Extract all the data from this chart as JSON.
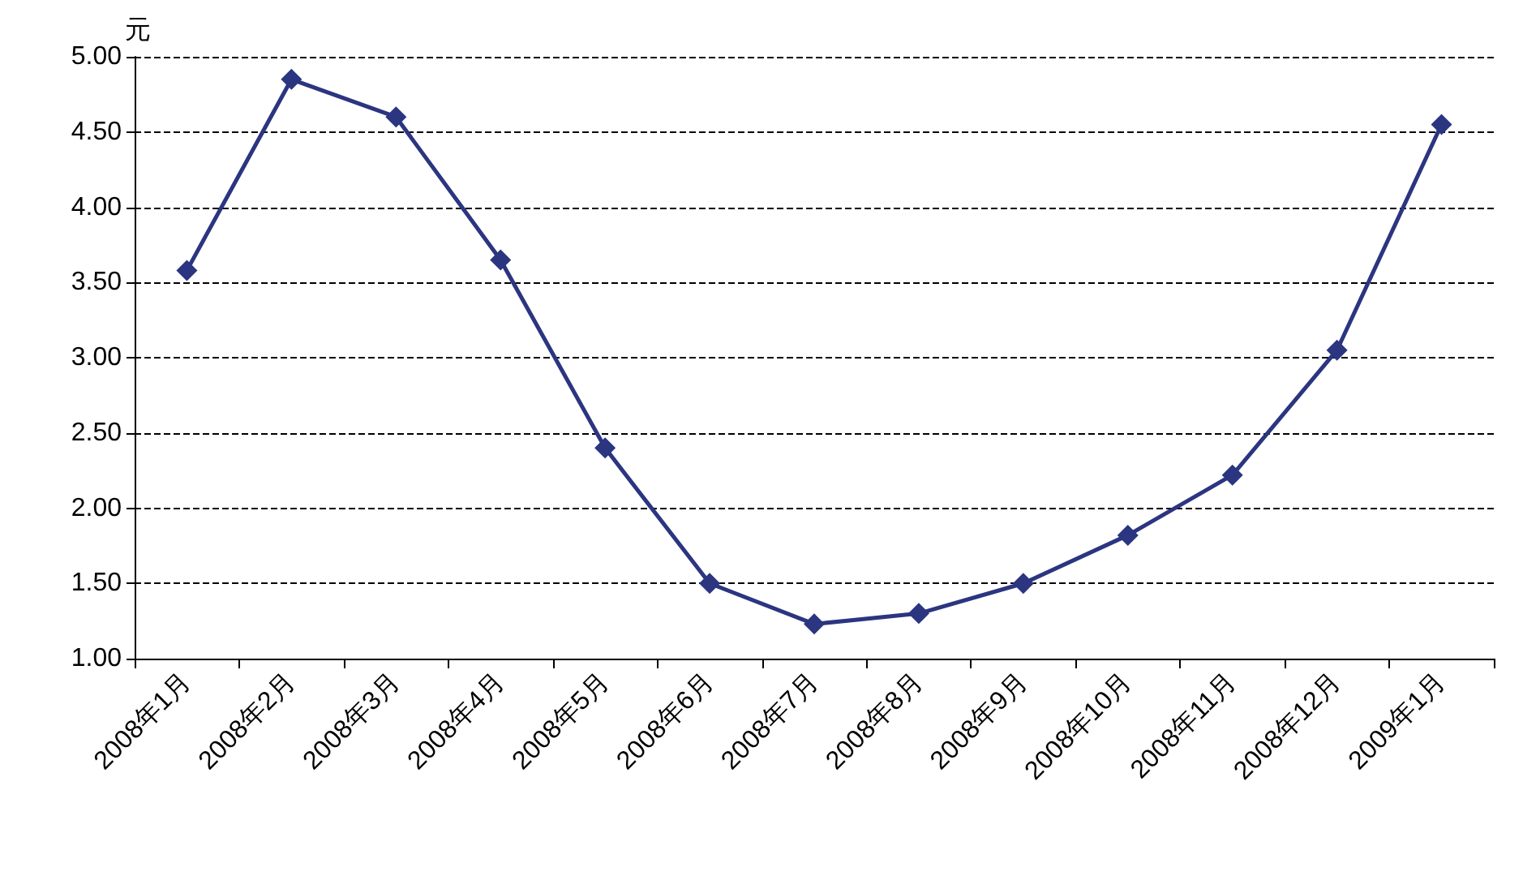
{
  "chart_data": {
    "type": "line",
    "ylabel": "元",
    "categories": [
      "2008年1月",
      "2008年2月",
      "2008年3月",
      "2008年4月",
      "2008年5月",
      "2008年6月",
      "2008年7月",
      "2008年8月",
      "2008年9月",
      "2008年10月",
      "2008年11月",
      "2008年12月",
      "2009年1月"
    ],
    "series": [
      {
        "color": "#2b3580",
        "values": [
          3.58,
          4.85,
          4.6,
          3.65,
          2.4,
          1.5,
          1.23,
          1.3,
          1.5,
          1.82,
          2.22,
          3.05,
          4.55
        ]
      }
    ],
    "ylim": [
      1,
      5
    ],
    "yticks": [
      {
        "value": 1,
        "label": "1.00"
      },
      {
        "value": 1.5,
        "label": "1.50"
      },
      {
        "value": 2,
        "label": "2.00"
      },
      {
        "value": 2.5,
        "label": "2.50"
      },
      {
        "value": 3,
        "label": "3.00"
      },
      {
        "value": 3.5,
        "label": "3.50"
      },
      {
        "value": 4,
        "label": "4.00"
      },
      {
        "value": 4.5,
        "label": "4.50"
      },
      {
        "value": 5,
        "label": "5.00"
      }
    ],
    "grid": "y",
    "marker": "diamond",
    "line_style": "solid"
  }
}
